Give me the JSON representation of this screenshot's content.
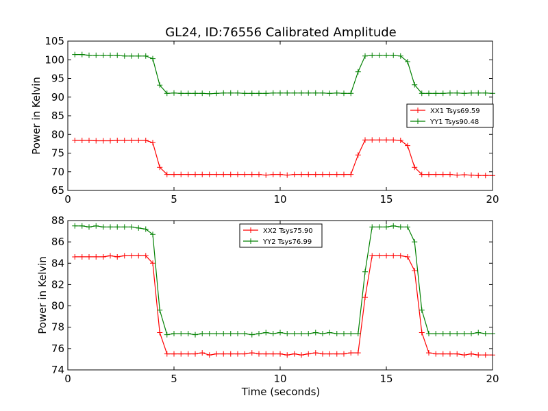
{
  "title": "GL24, ID:76556 Calibrated Amplitude",
  "xlabel": "Time (seconds)",
  "colors": {
    "red": "#ff0000",
    "green": "#008000"
  },
  "chart_data": [
    {
      "type": "line",
      "ylabel": "Power in Kelvin",
      "xlim": [
        0,
        20
      ],
      "ylim": [
        65,
        105
      ],
      "xticks": [
        0,
        5,
        10,
        15,
        20
      ],
      "yticks": [
        65,
        70,
        75,
        80,
        85,
        90,
        95,
        100,
        105
      ],
      "legend_position": "center-right",
      "x": [
        0.33,
        0.67,
        1.0,
        1.33,
        1.67,
        2.0,
        2.33,
        2.67,
        3.0,
        3.33,
        3.67,
        4.0,
        4.33,
        4.67,
        5.0,
        5.33,
        5.67,
        6.0,
        6.33,
        6.67,
        7.0,
        7.33,
        7.67,
        8.0,
        8.33,
        8.67,
        9.0,
        9.33,
        9.67,
        10.0,
        10.33,
        10.67,
        11.0,
        11.33,
        11.67,
        12.0,
        12.33,
        12.67,
        13.0,
        13.33,
        13.67,
        14.0,
        14.33,
        14.67,
        15.0,
        15.33,
        15.67,
        16.0,
        16.33,
        16.67,
        17.0,
        17.33,
        17.67,
        18.0,
        18.33,
        18.67,
        19.0,
        19.33,
        19.67,
        20.0
      ],
      "series": [
        {
          "name": "XX1 Tsys69.59",
          "color": "#ff0000",
          "values": [
            78.4,
            78.4,
            78.4,
            78.3,
            78.3,
            78.3,
            78.4,
            78.4,
            78.4,
            78.4,
            78.4,
            77.8,
            71.2,
            69.3,
            69.3,
            69.3,
            69.3,
            69.3,
            69.3,
            69.3,
            69.3,
            69.3,
            69.3,
            69.3,
            69.3,
            69.3,
            69.3,
            69.1,
            69.3,
            69.3,
            69.1,
            69.3,
            69.3,
            69.3,
            69.3,
            69.3,
            69.3,
            69.3,
            69.3,
            69.3,
            74.5,
            78.5,
            78.5,
            78.5,
            78.5,
            78.5,
            78.4,
            77.0,
            71.2,
            69.3,
            69.3,
            69.3,
            69.3,
            69.3,
            69.1,
            69.2,
            69.1,
            69.0,
            69.0,
            69.0
          ]
        },
        {
          "name": "YY1 Tsys90.48",
          "color": "#008000",
          "values": [
            101.4,
            101.4,
            101.2,
            101.2,
            101.2,
            101.2,
            101.2,
            101.0,
            101.0,
            101.0,
            101.0,
            100.3,
            93.2,
            91.0,
            91.1,
            91.0,
            91.0,
            91.0,
            91.0,
            90.9,
            91.0,
            91.1,
            91.1,
            91.1,
            91.0,
            91.0,
            91.0,
            91.0,
            91.1,
            91.1,
            91.1,
            91.1,
            91.1,
            91.1,
            91.1,
            91.1,
            91.0,
            91.1,
            91.0,
            91.0,
            96.8,
            101.0,
            101.2,
            101.2,
            101.2,
            101.2,
            101.0,
            99.5,
            93.3,
            91.0,
            91.0,
            91.0,
            91.0,
            91.1,
            91.1,
            91.0,
            91.1,
            91.1,
            91.1,
            91.0
          ]
        }
      ]
    },
    {
      "type": "line",
      "ylabel": "Power in Kelvin",
      "xlabel": "Time (seconds)",
      "xlim": [
        0,
        20
      ],
      "ylim": [
        74,
        88
      ],
      "xticks": [
        0,
        5,
        10,
        15,
        20
      ],
      "yticks": [
        74,
        76,
        78,
        80,
        82,
        84,
        86,
        88
      ],
      "legend_position": "upper-center",
      "x": [
        0.33,
        0.67,
        1.0,
        1.33,
        1.67,
        2.0,
        2.33,
        2.67,
        3.0,
        3.33,
        3.67,
        4.0,
        4.33,
        4.67,
        5.0,
        5.33,
        5.67,
        6.0,
        6.33,
        6.67,
        7.0,
        7.33,
        7.67,
        8.0,
        8.33,
        8.67,
        9.0,
        9.33,
        9.67,
        10.0,
        10.33,
        10.67,
        11.0,
        11.33,
        11.67,
        12.0,
        12.33,
        12.67,
        13.0,
        13.33,
        13.67,
        14.0,
        14.33,
        14.67,
        15.0,
        15.33,
        15.67,
        16.0,
        16.33,
        16.67,
        17.0,
        17.33,
        17.67,
        18.0,
        18.33,
        18.67,
        19.0,
        19.33,
        19.67,
        20.0
      ],
      "series": [
        {
          "name": "XX2 Tsys75.90",
          "color": "#ff0000",
          "values": [
            84.6,
            84.6,
            84.6,
            84.6,
            84.6,
            84.7,
            84.6,
            84.7,
            84.7,
            84.7,
            84.7,
            84.0,
            77.5,
            75.5,
            75.5,
            75.5,
            75.5,
            75.5,
            75.6,
            75.4,
            75.5,
            75.5,
            75.5,
            75.5,
            75.5,
            75.6,
            75.5,
            75.5,
            75.5,
            75.5,
            75.4,
            75.5,
            75.4,
            75.5,
            75.6,
            75.5,
            75.5,
            75.5,
            75.5,
            75.6,
            75.6,
            80.8,
            84.7,
            84.7,
            84.7,
            84.7,
            84.7,
            84.6,
            83.3,
            77.5,
            75.6,
            75.5,
            75.5,
            75.5,
            75.5,
            75.4,
            75.5,
            75.4,
            75.4,
            75.4
          ]
        },
        {
          "name": "YY2 Tsys76.99",
          "color": "#008000",
          "values": [
            87.5,
            87.5,
            87.4,
            87.5,
            87.4,
            87.4,
            87.4,
            87.4,
            87.4,
            87.3,
            87.2,
            86.7,
            79.6,
            77.3,
            77.4,
            77.4,
            77.4,
            77.3,
            77.4,
            77.4,
            77.4,
            77.4,
            77.4,
            77.4,
            77.4,
            77.3,
            77.4,
            77.5,
            77.4,
            77.5,
            77.4,
            77.4,
            77.4,
            77.4,
            77.5,
            77.4,
            77.5,
            77.4,
            77.4,
            77.4,
            77.4,
            83.2,
            87.4,
            87.4,
            87.4,
            87.5,
            87.4,
            87.4,
            86.0,
            79.6,
            77.4,
            77.4,
            77.4,
            77.4,
            77.4,
            77.4,
            77.4,
            77.5,
            77.4,
            77.4
          ]
        }
      ]
    }
  ]
}
